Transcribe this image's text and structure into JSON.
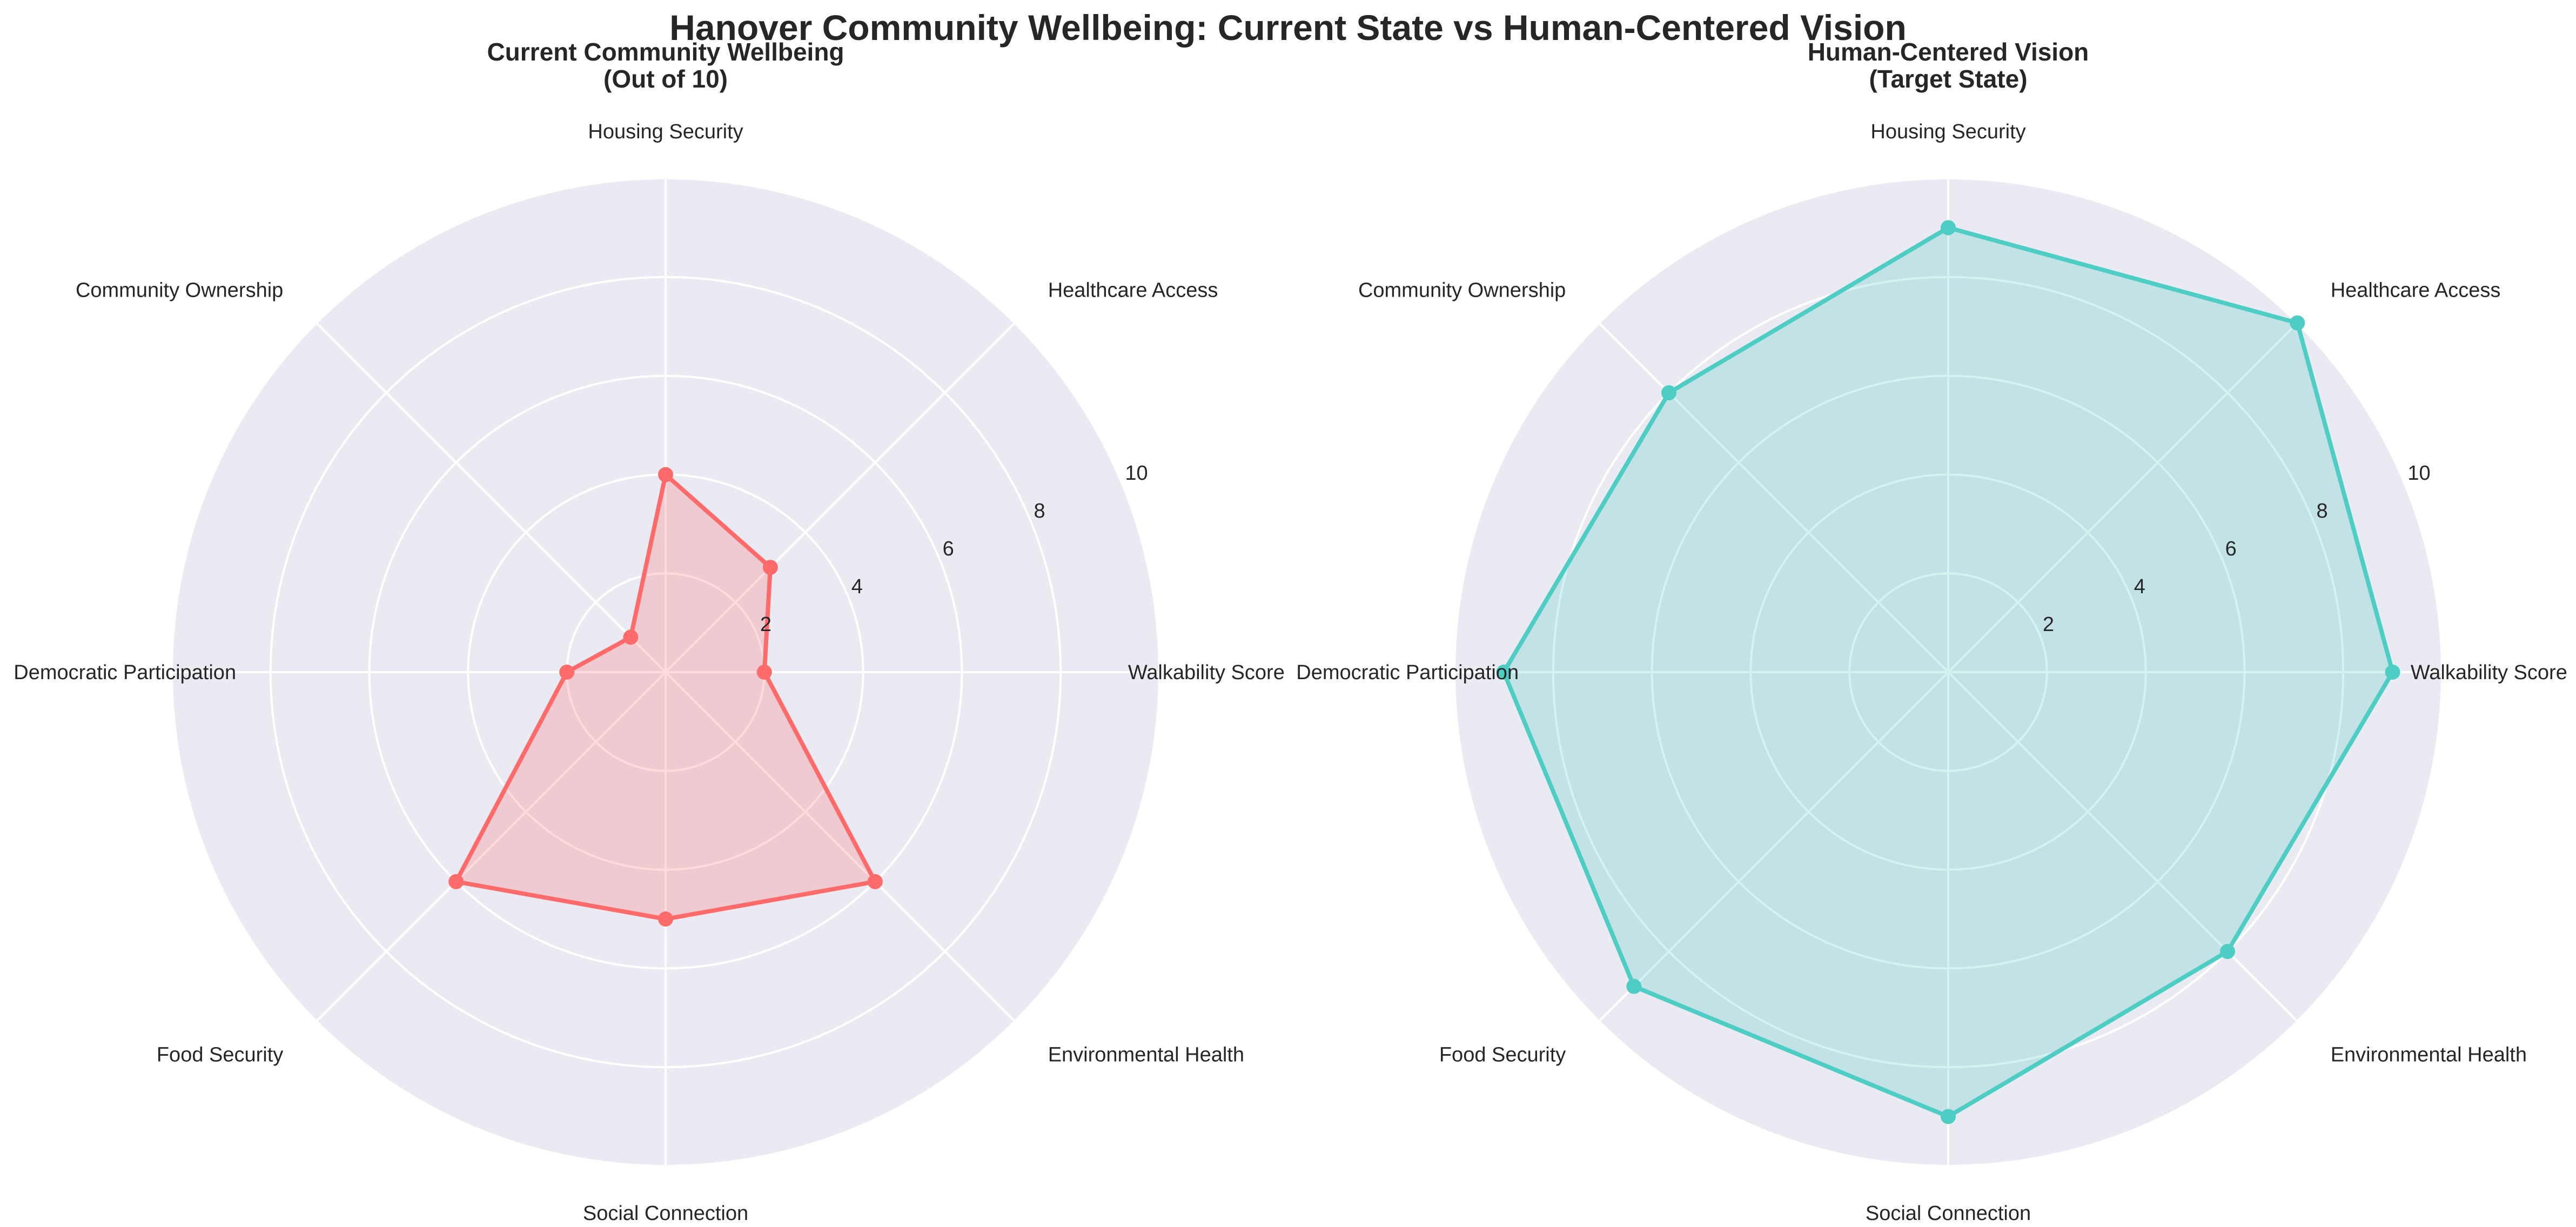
{
  "figure_title": "Hanover Community Wellbeing: Current State vs Human-Centered Vision",
  "colors": {
    "background": "#ffffff",
    "panel": "#eaeaf2",
    "grid": "#ffffff",
    "current": "#ff6b6b",
    "vision": "#4ecdc4"
  },
  "chart_data": [
    {
      "type": "radar",
      "title_lines": [
        "Current Community Wellbeing",
        "(Out of 10)"
      ],
      "categories": [
        "Walkability Score",
        "Healthcare Access",
        "Housing Security",
        "Community Ownership",
        "Democratic Participation",
        "Food Security",
        "Social Connection",
        "Environmental Health"
      ],
      "values": [
        2,
        3,
        4,
        1,
        2,
        6,
        5,
        6
      ],
      "rlim": [
        0,
        10
      ],
      "rticks": [
        "2",
        "4",
        "6",
        "8",
        "10"
      ],
      "color": "#ff6b6b",
      "fill_opacity": 0.25
    },
    {
      "type": "radar",
      "title_lines": [
        "Human-Centered Vision",
        "(Target State)"
      ],
      "categories": [
        "Walkability Score",
        "Healthcare Access",
        "Housing Security",
        "Community Ownership",
        "Democratic Participation",
        "Food Security",
        "Social Connection",
        "Environmental Health"
      ],
      "values": [
        9,
        10,
        9,
        8,
        9,
        9,
        9,
        8
      ],
      "rlim": [
        0,
        10
      ],
      "rticks": [
        "2",
        "4",
        "6",
        "8",
        "10"
      ],
      "color": "#4ecdc4",
      "fill_opacity": 0.25
    }
  ]
}
